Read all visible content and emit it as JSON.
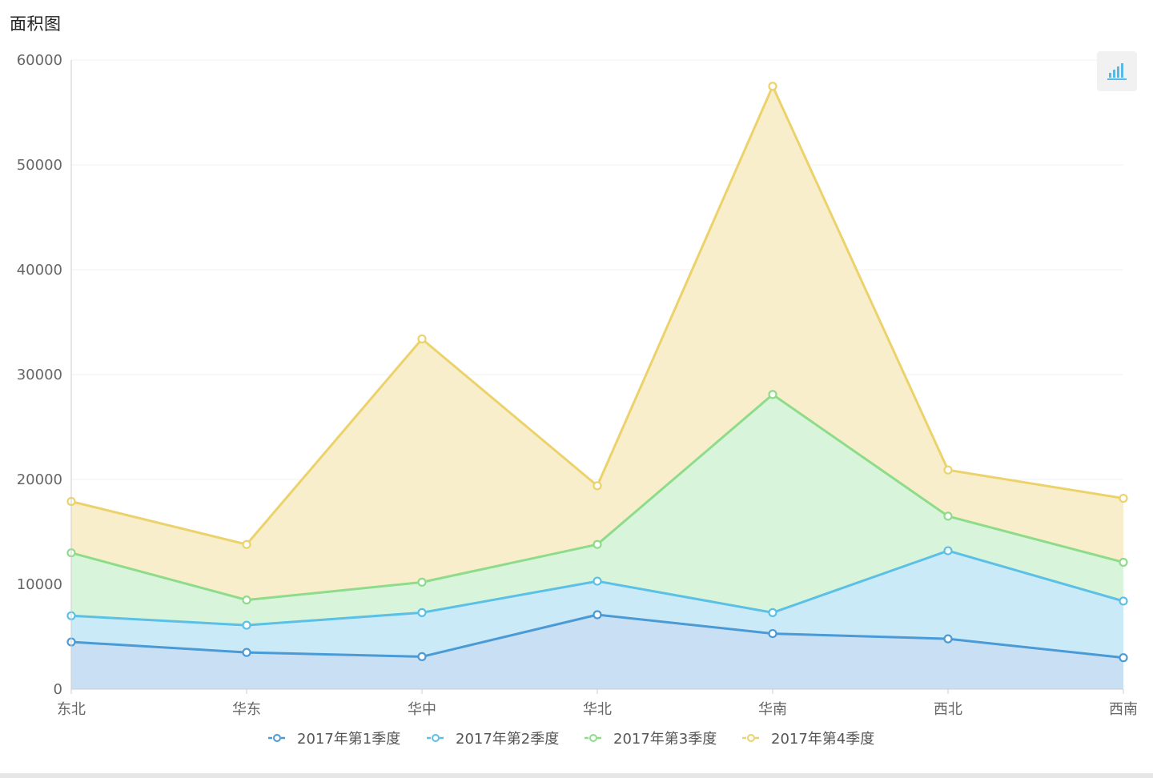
{
  "title": "面积图",
  "toolbox": {
    "icon": "bar-chart-icon",
    "color": "#56b9e6"
  },
  "chart_data": {
    "type": "area",
    "stacked": true,
    "categories": [
      "东北",
      "华东",
      "华中",
      "华北",
      "华南",
      "西北",
      "西南"
    ],
    "ylim": [
      0,
      60000
    ],
    "yticks": [
      "0",
      "10000",
      "20000",
      "30000",
      "40000",
      "50000",
      "60000"
    ],
    "grid": true,
    "legend_position": "bottom",
    "series": [
      {
        "name": "2017年第1季度",
        "color": "#4a9ad6",
        "fill": "#c8dff4",
        "values": [
          4500,
          3500,
          3100,
          7100,
          5300,
          4800,
          3000
        ]
      },
      {
        "name": "2017年第2季度",
        "color": "#5bc0e6",
        "fill": "#cbeaf8",
        "values": [
          2500,
          2600,
          4200,
          3200,
          2000,
          8400,
          5400
        ]
      },
      {
        "name": "2017年第3季度",
        "color": "#8edc8a",
        "fill": "#d8f5dc",
        "values": [
          6000,
          2400,
          2900,
          3500,
          20800,
          3300,
          3700
        ]
      },
      {
        "name": "2017年第4季度",
        "color": "#ecd26a",
        "fill": "#f9eecb",
        "values": [
          4900,
          5300,
          23200,
          5600,
          29400,
          4400,
          6100
        ]
      }
    ]
  }
}
